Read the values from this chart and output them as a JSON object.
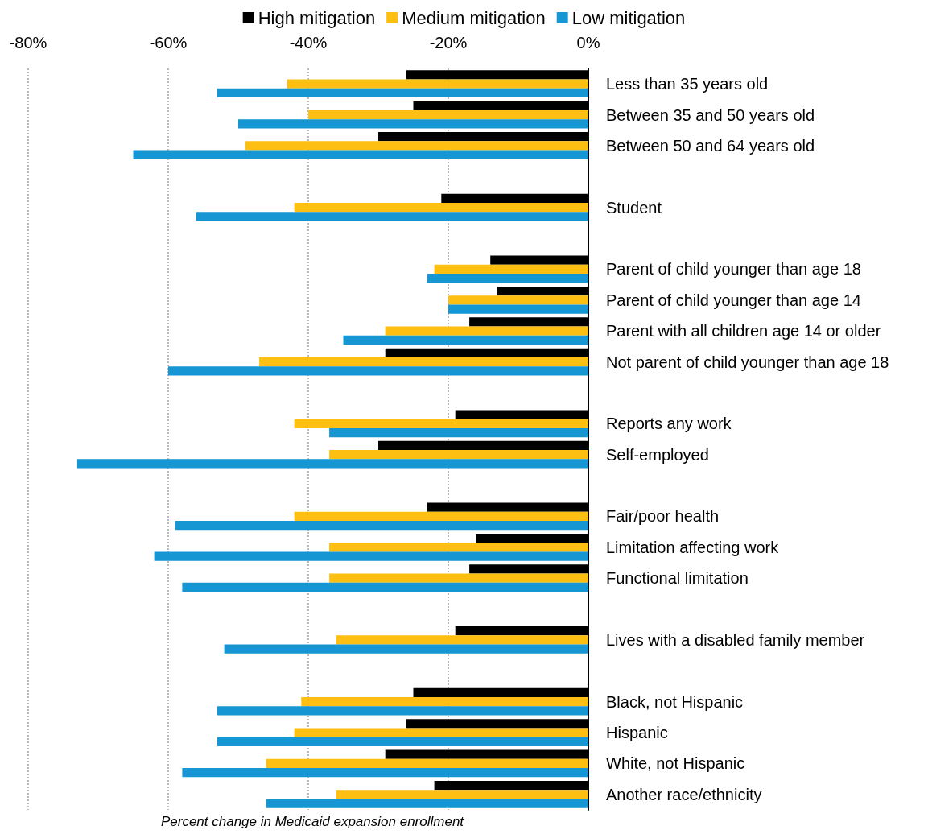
{
  "chart_data": {
    "type": "bar",
    "orientation": "horizontal",
    "xlabel": "Percent change in Medicaid expansion enrollment",
    "categories": [
      "Less than 35 years old",
      "Between 35 and 50 years old",
      "Between 50 and 64 years old",
      null,
      "Student",
      null,
      "Parent of child younger than age 18",
      "Parent of child younger than age 14",
      "Parent with all children age 14 or older",
      "Not parent of child younger than age 18",
      null,
      "Reports any work",
      "Self-employed",
      null,
      "Fair/poor health",
      "Limitation affecting work",
      "Functional limitation",
      null,
      "Lives with a disabled family member",
      null,
      "Black, not Hispanic",
      "Hispanic",
      "White, not Hispanic",
      "Another race/ethnicity"
    ],
    "series": [
      {
        "name": "High mitigation",
        "color": "#000000",
        "values": [
          -26,
          -25,
          -30,
          null,
          -21,
          null,
          -14,
          -13,
          -17,
          -29,
          null,
          -19,
          -30,
          null,
          -23,
          -16,
          -17,
          null,
          -19,
          null,
          -25,
          -26,
          -29,
          -22
        ]
      },
      {
        "name": "Medium mitigation",
        "color": "#fdbf11",
        "values": [
          -43,
          -40,
          -49,
          null,
          -42,
          null,
          -22,
          -20,
          -29,
          -47,
          null,
          -42,
          -37,
          null,
          -42,
          -37,
          -37,
          null,
          -36,
          null,
          -41,
          -42,
          -46,
          -36
        ]
      },
      {
        "name": "Low mitigation",
        "color": "#1696d2",
        "values": [
          -53,
          -50,
          -65,
          null,
          -56,
          null,
          -23,
          -20,
          -35,
          -60,
          null,
          -37,
          -73,
          null,
          -59,
          -62,
          -58,
          null,
          -52,
          null,
          -53,
          -53,
          -58,
          -46
        ]
      }
    ],
    "xlim": [
      -80,
      0
    ],
    "xticks": [
      {
        "value": -80,
        "label": "-80%"
      },
      {
        "value": -60,
        "label": "-60%"
      },
      {
        "value": -40,
        "label": "-40%"
      },
      {
        "value": -20,
        "label": "-20%"
      },
      {
        "value": 0,
        "label": "0%"
      }
    ],
    "grid": "x",
    "legend": "top"
  }
}
